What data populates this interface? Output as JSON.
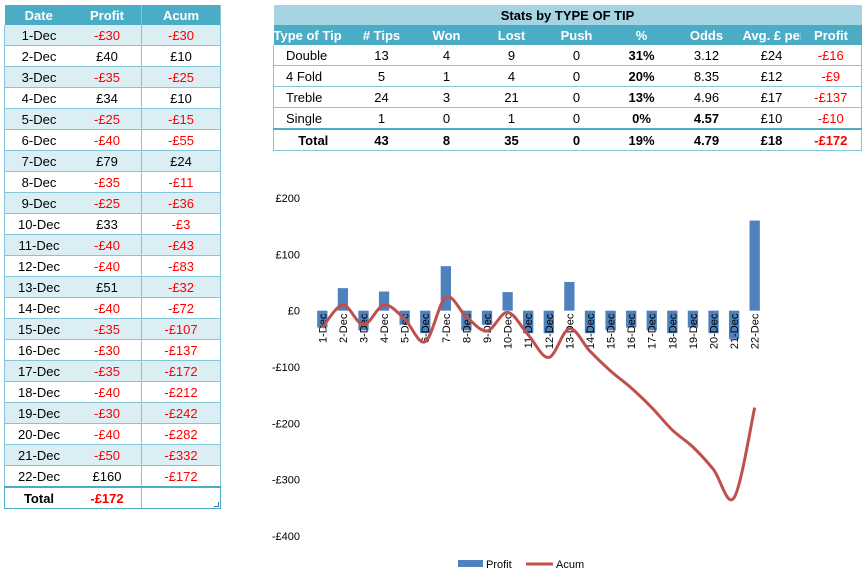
{
  "daily_table": {
    "headers": [
      "Date",
      "Profit",
      "Acum"
    ],
    "rows": [
      [
        "1-Dec",
        "-£30",
        "-£30"
      ],
      [
        "2-Dec",
        "£40",
        "£10"
      ],
      [
        "3-Dec",
        "-£35",
        "-£25"
      ],
      [
        "4-Dec",
        "£34",
        "£10"
      ],
      [
        "5-Dec",
        "-£25",
        "-£15"
      ],
      [
        "6-Dec",
        "-£40",
        "-£55"
      ],
      [
        "7-Dec",
        "£79",
        "£24"
      ],
      [
        "8-Dec",
        "-£35",
        "-£11"
      ],
      [
        "9-Dec",
        "-£25",
        "-£36"
      ],
      [
        "10-Dec",
        "£33",
        "-£3"
      ],
      [
        "11-Dec",
        "-£40",
        "-£43"
      ],
      [
        "12-Dec",
        "-£40",
        "-£83"
      ],
      [
        "13-Dec",
        "£51",
        "-£32"
      ],
      [
        "14-Dec",
        "-£40",
        "-£72"
      ],
      [
        "15-Dec",
        "-£35",
        "-£107"
      ],
      [
        "16-Dec",
        "-£30",
        "-£137"
      ],
      [
        "17-Dec",
        "-£35",
        "-£172"
      ],
      [
        "18-Dec",
        "-£40",
        "-£212"
      ],
      [
        "19-Dec",
        "-£30",
        "-£242"
      ],
      [
        "20-Dec",
        "-£40",
        "-£282"
      ],
      [
        "21-Dec",
        "-£50",
        "-£332"
      ],
      [
        "22-Dec",
        "£160",
        "-£172"
      ]
    ],
    "total": {
      "label": "Total",
      "profit": "-£172",
      "acum": ""
    }
  },
  "stats_table": {
    "title": "Stats by TYPE OF TIP",
    "headers": [
      "Type of Tip",
      "# Tips",
      "Won",
      "Lost",
      "Push",
      "%",
      "Odds",
      "Avg. £ per Tip",
      "Profit"
    ],
    "rows": [
      [
        "Double",
        "13",
        "4",
        "9",
        "0",
        "31%",
        "3.12",
        "£24",
        "-£16"
      ],
      [
        "4 Fold",
        "5",
        "1",
        "4",
        "0",
        "20%",
        "8.35",
        "£12",
        "-£9"
      ],
      [
        "Treble",
        "24",
        "3",
        "21",
        "0",
        "13%",
        "4.96",
        "£17",
        "-£137"
      ],
      [
        "Single",
        "1",
        "0",
        "1",
        "0",
        "0%",
        "4.57",
        "£10",
        "-£10"
      ]
    ],
    "total": [
      "Total",
      "43",
      "8",
      "35",
      "0",
      "19%",
      "4.79",
      "£18",
      "-£172"
    ]
  },
  "colors": {
    "header_bg": "#4bacc6",
    "title_bg": "#a5d5e2",
    "alt_row": "#daeef3",
    "negative": "#ff0000",
    "bar": "#4f81bd",
    "line": "#c0504d"
  },
  "chart_data": {
    "type": "bar",
    "categories": [
      "1-Dec",
      "2-Dec",
      "3-Dec",
      "4-Dec",
      "5-Dec",
      "6-Dec",
      "7-Dec",
      "8-Dec",
      "9-Dec",
      "10-Dec",
      "11-Dec",
      "12-Dec",
      "13-Dec",
      "14-Dec",
      "15-Dec",
      "16-Dec",
      "17-Dec",
      "18-Dec",
      "19-Dec",
      "20-Dec",
      "21-Dec",
      "22-Dec"
    ],
    "series": [
      {
        "name": "Profit",
        "type": "bar",
        "values": [
          -30,
          40,
          -35,
          34,
          -25,
          -40,
          79,
          -35,
          -25,
          33,
          -40,
          -40,
          51,
          -40,
          -35,
          -30,
          -35,
          -40,
          -30,
          -40,
          -50,
          160
        ]
      },
      {
        "name": "Acum",
        "type": "line",
        "values": [
          -30,
          10,
          -25,
          10,
          -15,
          -55,
          24,
          -11,
          -36,
          -3,
          -43,
          -83,
          -32,
          -72,
          -107,
          -137,
          -172,
          -212,
          -242,
          -282,
          -332,
          -172
        ]
      }
    ],
    "ylim": [
      -400,
      200
    ],
    "yticks": [
      200,
      100,
      0,
      -100,
      -200,
      -300,
      -400
    ],
    "ytick_labels": [
      "£200",
      "£100",
      "£0",
      "-£100",
      "-£200",
      "-£300",
      "-£400"
    ],
    "legend": "bottom",
    "grid": false,
    "title": "",
    "xlabel": "",
    "ylabel": ""
  }
}
